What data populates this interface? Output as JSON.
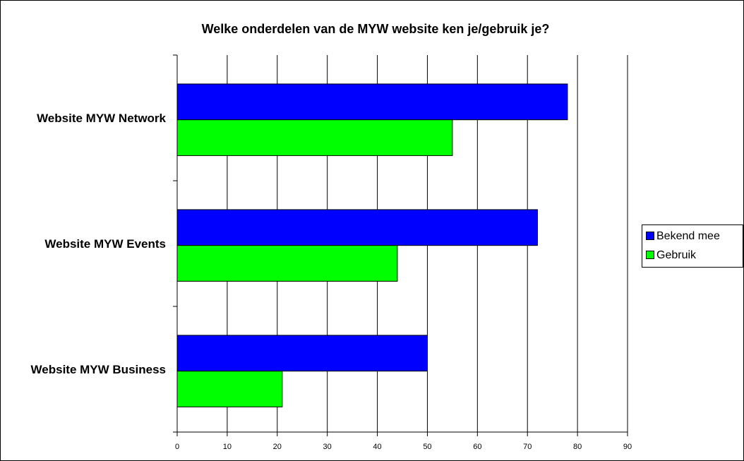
{
  "chart_data": {
    "type": "barh",
    "title": "Welke onderdelen van de MYW website ken je/gebruik je?",
    "categories": [
      "Website MYW Network",
      "Website MYW Events",
      "Website MYW Business"
    ],
    "series": [
      {
        "name": "Bekend mee",
        "color": "#0000ff",
        "values": [
          78,
          72,
          50
        ]
      },
      {
        "name": "Gebruik",
        "color": "#00ff00",
        "values": [
          55,
          44,
          21
        ]
      }
    ],
    "xlim": [
      0,
      90
    ],
    "xticks": [
      0,
      10,
      20,
      30,
      40,
      50,
      60,
      70,
      80,
      90
    ],
    "grid": true,
    "legend": "right"
  }
}
